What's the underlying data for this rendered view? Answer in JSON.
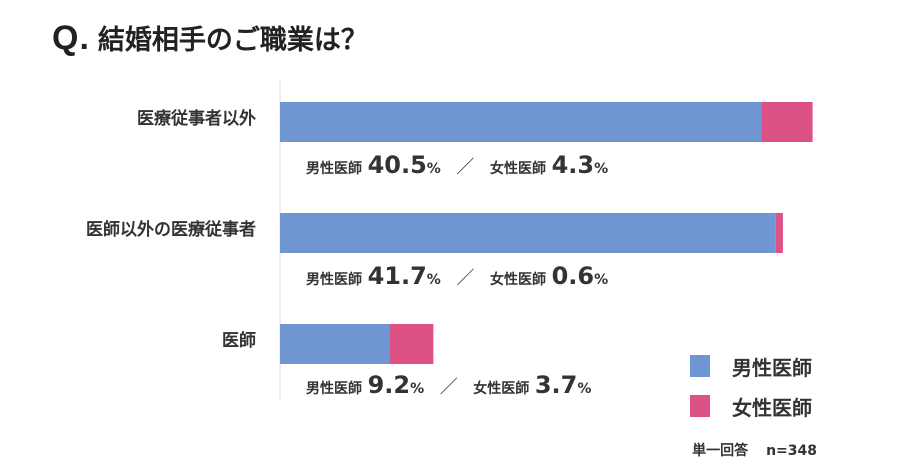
{
  "title": {
    "prefix": "Q.",
    "text": "結婚相手のご職業は？"
  },
  "colors": {
    "male": "#6F96D3",
    "female": "#DC5286",
    "axis": "#d9d9d9"
  },
  "chart_data": {
    "type": "bar",
    "stacked": true,
    "orientation": "horizontal",
    "categories": [
      "医療従事者以外",
      "医師以外の医療従事者",
      "医師"
    ],
    "series": [
      {
        "name": "男性医師",
        "values": [
          40.5,
          41.7,
          9.2
        ]
      },
      {
        "name": "女性医師",
        "values": [
          4.3,
          0.6,
          3.7
        ]
      }
    ],
    "unit": "%",
    "xlim": [
      0,
      45
    ],
    "legend_position": "bottom-right"
  },
  "value_rows": [
    {
      "male_label": "男性医師",
      "male_value": "40.5",
      "female_label": "女性医師",
      "female_value": "4.3"
    },
    {
      "male_label": "男性医師",
      "male_value": "41.7",
      "female_label": "女性医師",
      "female_value": "0.6"
    },
    {
      "male_label": "男性医師",
      "male_value": "9.2",
      "female_label": "女性医師",
      "female_value": "3.7"
    }
  ],
  "percent_sign": "%",
  "separator": "／",
  "footnote": {
    "type": "単一回答",
    "n": "n=348"
  }
}
